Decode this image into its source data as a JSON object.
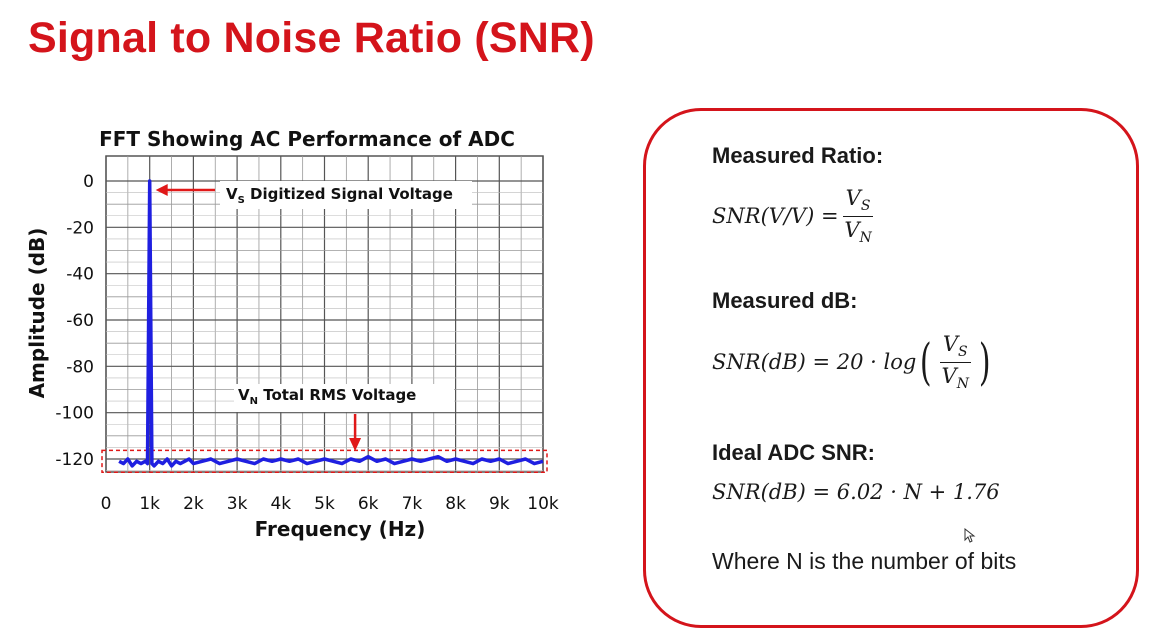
{
  "slide": {
    "title": "Signal to Noise Ratio (SNR)"
  },
  "chart_data": {
    "type": "line",
    "title": "FFT Showing AC Performance of ADC",
    "xlabel": "Frequency (Hz)",
    "ylabel": "Amplitude (dB)",
    "x_ticks": [
      "0",
      "1k",
      "2k",
      "3k",
      "4k",
      "5k",
      "6k",
      "7k",
      "8k",
      "9k",
      "10k"
    ],
    "y_ticks": [
      "0",
      "-20",
      "-40",
      "-60",
      "-80",
      "-100",
      "-120"
    ],
    "xlim": [
      0,
      10000
    ],
    "ylim": [
      -130,
      0
    ],
    "grid": true,
    "series": [
      {
        "color": "#1f1fe0",
        "signal_peak": {
          "x": 1000,
          "y": 0
        },
        "noise_floor_db": -121,
        "x": [
          300,
          400,
          500,
          600,
          700,
          800,
          900,
          950,
          1000,
          1050,
          1100,
          1200,
          1300,
          1400,
          1500,
          1600,
          1700,
          1800,
          1900,
          2000,
          2200,
          2400,
          2600,
          2800,
          3000,
          3200,
          3400,
          3600,
          3800,
          4000,
          4200,
          4400,
          4600,
          4800,
          5000,
          5200,
          5400,
          5600,
          5800,
          6000,
          6200,
          6400,
          6600,
          6800,
          7000,
          7200,
          7400,
          7600,
          7800,
          8000,
          8200,
          8400,
          8600,
          8800,
          9000,
          9200,
          9400,
          9600,
          9800,
          10000
        ],
        "y": [
          -121,
          -122,
          -120,
          -123,
          -121,
          -122,
          -121,
          -122,
          0,
          -122,
          -123,
          -121,
          -122,
          -120,
          -123,
          -121,
          -122,
          -121,
          -120,
          -122,
          -121,
          -120,
          -122,
          -121,
          -120,
          -121,
          -122,
          -120,
          -121,
          -120,
          -121,
          -120,
          -122,
          -121,
          -120,
          -121,
          -122,
          -120,
          -121,
          -119,
          -121,
          -120,
          -122,
          -121,
          -120,
          -121,
          -120,
          -119,
          -121,
          -120,
          -121,
          -122,
          -120,
          -121,
          -120,
          -122,
          -121,
          -120,
          -122,
          -121
        ]
      }
    ],
    "annotations": {
      "signal_label_main": "V",
      "signal_label_sub": "S",
      "signal_label_rest": " Digitized Signal Voltage",
      "noise_label_main": "V",
      "noise_label_sub": "N",
      "noise_label_rest": " Total RMS Voltage",
      "noise_marker_x": 5700,
      "noise_band_db": [
        -118,
        -124
      ],
      "accent_color": "#e01818"
    }
  },
  "info": {
    "measured_ratio_heading": "Measured Ratio:",
    "measured_db_heading": "Measured dB:",
    "ideal_heading": "Ideal ADC SNR:",
    "where_text": "Where N is the number of bits",
    "eq1_lhs": "SNR(V/V) = ",
    "eq2_lhs": "SNR(dB) = 20 · log",
    "eq3": "SNR(dB) = 6.02 · N + 1.76",
    "var_v": "V",
    "sub_s": "S",
    "sub_n": "N"
  },
  "colors": {
    "accent": "#d4141b",
    "series": "#1f1fe0"
  }
}
